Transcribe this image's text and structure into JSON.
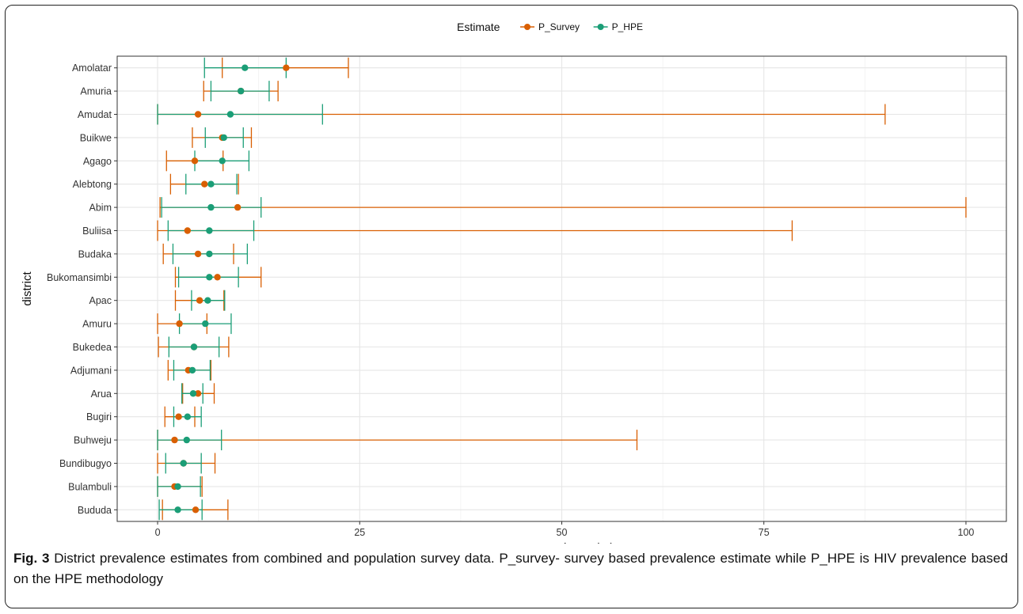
{
  "chart_data": {
    "type": "scatter",
    "title": "",
    "xlabel": "HIV Prevalence (%)",
    "ylabel": "district",
    "xlim": [
      -5,
      105
    ],
    "xticks": [
      0,
      25,
      50,
      75,
      100
    ],
    "grid": true,
    "legend": {
      "title": "Estimate",
      "position": "top"
    },
    "categories": [
      "Amolatar",
      "Amuria",
      "Amudat",
      "Buikwe",
      "Agago",
      "Alebtong",
      "Abim",
      "Buliisa",
      "Budaka",
      "Bukomansimbi",
      "Apac",
      "Amuru",
      "Bukedea",
      "Adjumani",
      "Arua",
      "Bugiri",
      "Buhweju",
      "Bundibugyo",
      "Bulambuli",
      "Bududa"
    ],
    "series": [
      {
        "name": "P_Survey",
        "color": "#D95F02",
        "points": [
          15.9,
          10.3,
          5.0,
          8.0,
          4.6,
          5.8,
          9.9,
          3.7,
          5.0,
          7.4,
          5.2,
          2.7,
          4.5,
          3.8,
          5.0,
          2.6,
          2.1,
          3.2,
          2.1,
          4.7
        ],
        "lower": [
          8.0,
          5.7,
          0.0,
          4.3,
          1.1,
          1.6,
          0.3,
          0.0,
          0.7,
          2.2,
          2.2,
          0.0,
          0.1,
          1.3,
          3.1,
          0.9,
          0.0,
          0.0,
          0.0,
          0.6
        ],
        "upper": [
          23.6,
          14.9,
          90.0,
          11.6,
          8.1,
          10.0,
          100.0,
          78.5,
          9.4,
          12.8,
          8.2,
          6.1,
          8.8,
          6.6,
          7.0,
          4.6,
          59.3,
          7.1,
          5.5,
          8.7
        ]
      },
      {
        "name": "P_HPE",
        "color": "#1B9E77",
        "points": [
          10.8,
          10.3,
          9.0,
          8.2,
          8.0,
          6.6,
          6.6,
          6.4,
          6.4,
          6.4,
          6.2,
          5.9,
          4.5,
          4.3,
          4.4,
          3.7,
          3.6,
          3.2,
          2.5,
          2.5
        ],
        "lower": [
          5.8,
          6.6,
          0.0,
          5.9,
          4.6,
          3.5,
          0.5,
          1.3,
          1.9,
          2.6,
          4.2,
          2.7,
          1.4,
          2.0,
          3.0,
          2.0,
          0.0,
          1.0,
          0.0,
          0.2
        ],
        "upper": [
          15.9,
          13.8,
          20.4,
          10.6,
          11.3,
          9.8,
          12.8,
          11.9,
          11.1,
          10.0,
          8.3,
          9.1,
          7.6,
          6.5,
          5.6,
          5.4,
          7.9,
          5.4,
          5.3,
          5.5
        ]
      }
    ]
  },
  "caption": {
    "label": "Fig. 3",
    "text": " District prevalence estimates from combined and population survey data. P_survey- survey based prevalence estimate while P_HPE is HIV prevalence based on the HPE methodology"
  }
}
